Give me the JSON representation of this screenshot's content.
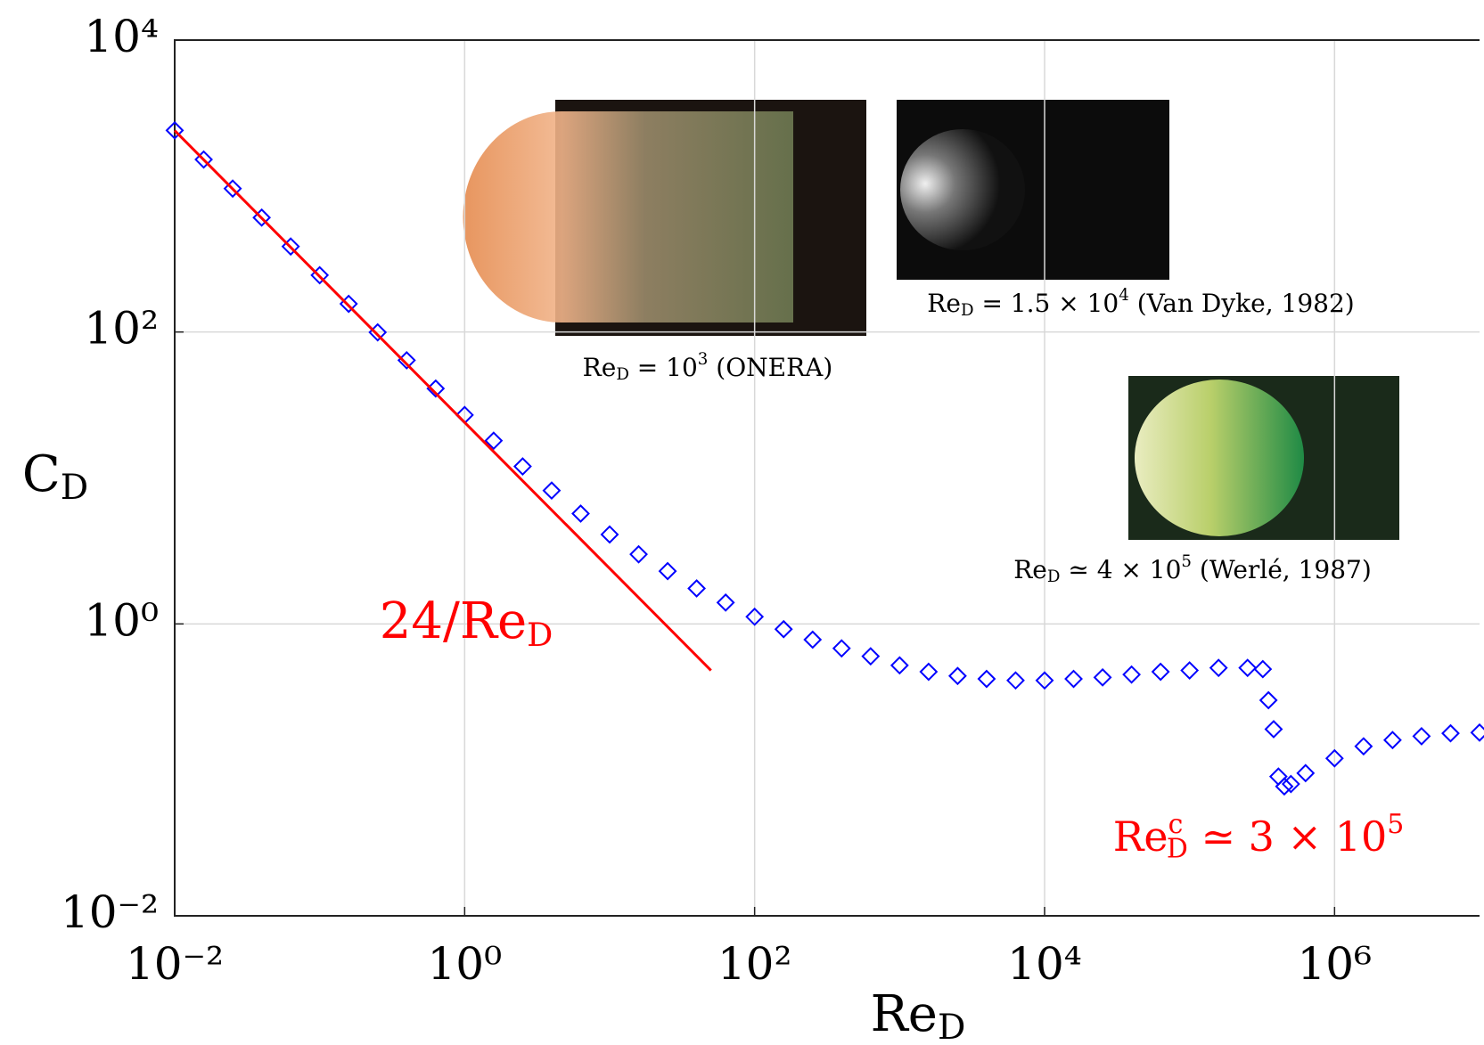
{
  "chart_data": {
    "type": "scatter",
    "log_x": true,
    "log_y": true,
    "grid": true,
    "xlim": [
      0.01,
      10000000
    ],
    "ylim": [
      0.01,
      10000
    ],
    "xticks": [
      {
        "value": 0.01,
        "label": "10⁻²"
      },
      {
        "value": 1,
        "label": "10⁰"
      },
      {
        "value": 100,
        "label": "10²"
      },
      {
        "value": 10000,
        "label": "10⁴"
      },
      {
        "value": 1000000,
        "label": "10⁶"
      }
    ],
    "yticks": [
      {
        "value": 0.01,
        "label": "10⁻²"
      },
      {
        "value": 1,
        "label": "10⁰"
      },
      {
        "value": 100,
        "label": "10²"
      },
      {
        "value": 10000,
        "label": "10⁴"
      }
    ],
    "x_label": {
      "main": "Re",
      "sub": "D"
    },
    "y_label": {
      "main": "C",
      "sub": "D"
    },
    "series": [
      {
        "kind": "markers",
        "color": "#0000ff",
        "x": [
          0.01,
          0.01585,
          0.02512,
          0.03981,
          0.0631,
          0.1,
          0.1585,
          0.2512,
          0.3981,
          0.631,
          1,
          1.585,
          2.512,
          3.981,
          6.31,
          10,
          15.85,
          25.12,
          39.81,
          63.1,
          100,
          158.5,
          251.2,
          398.1,
          631,
          1000,
          1585,
          2512,
          3981,
          6310,
          10000,
          15850,
          25120,
          39810,
          63100,
          100000,
          158500,
          251200,
          320000,
          350000,
          380000,
          410000,
          450000,
          500000,
          631000,
          1000000,
          1585000,
          2512000,
          3981000,
          6310000,
          10000000
        ],
        "values": [
          2406,
          1520,
          961,
          608,
          385.5,
          245,
          156,
          99.5,
          64,
          41,
          27,
          18,
          12,
          8.2,
          5.7,
          4.1,
          3.0,
          2.3,
          1.75,
          1.4,
          1.12,
          0.92,
          0.78,
          0.68,
          0.6,
          0.52,
          0.47,
          0.44,
          0.42,
          0.41,
          0.41,
          0.42,
          0.43,
          0.45,
          0.47,
          0.48,
          0.5,
          0.5,
          0.49,
          0.3,
          0.19,
          0.09,
          0.077,
          0.08,
          0.095,
          0.12,
          0.145,
          0.16,
          0.17,
          0.178,
          0.18
        ]
      },
      {
        "kind": "line",
        "color": "#ff0000",
        "x": [
          0.01,
          50
        ],
        "values": [
          2400,
          0.48
        ]
      }
    ],
    "annotations": [
      {
        "color": "#ff0000",
        "segments": [
          {
            "text": "24/Re"
          },
          {
            "text": "D",
            "style": "sub"
          }
        ]
      },
      {
        "color": "#ff0000",
        "segments": [
          {
            "text": "Re"
          },
          {
            "text": "c",
            "style": "sup"
          },
          {
            "text": "D",
            "style": "sub"
          },
          {
            "text": " ≃ 3 × 10"
          },
          {
            "text": "5",
            "style": "sup"
          }
        ]
      },
      {
        "color": "#000000",
        "segments": [
          {
            "text": "Re"
          },
          {
            "text": "D",
            "style": "sub"
          },
          {
            "text": " = 10"
          },
          {
            "text": "3",
            "style": "sup"
          },
          {
            "text": " (ONERA)"
          }
        ]
      },
      {
        "color": "#000000",
        "segments": [
          {
            "text": "Re"
          },
          {
            "text": "D",
            "style": "sub"
          },
          {
            "text": " = 1.5 × 10"
          },
          {
            "text": "4",
            "style": "sup"
          },
          {
            "text": " (Van Dyke, 1982)"
          }
        ]
      },
      {
        "color": "#000000",
        "segments": [
          {
            "text": "Re"
          },
          {
            "text": "D",
            "style": "sub"
          },
          {
            "text": " ≃ 4 × 10"
          },
          {
            "text": "5",
            "style": "sup"
          },
          {
            "text": " (Werlé, 1987)"
          }
        ]
      }
    ]
  }
}
